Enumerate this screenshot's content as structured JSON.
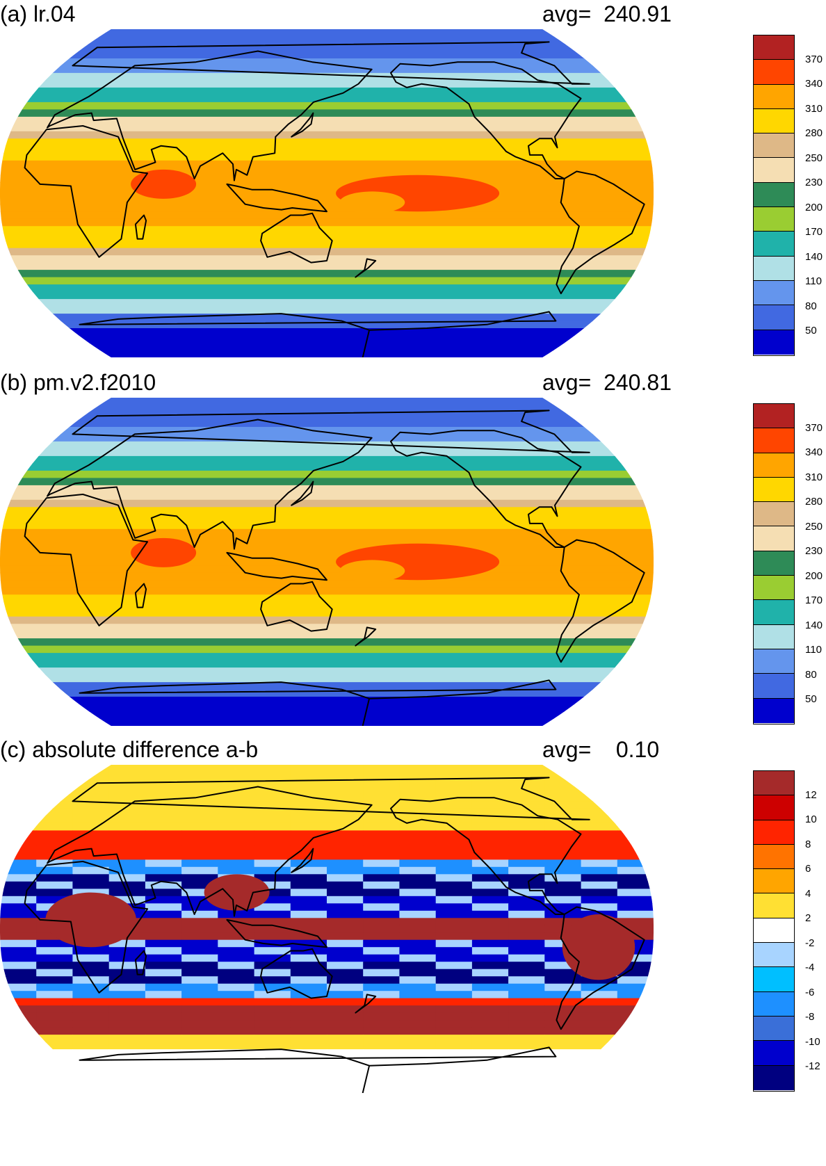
{
  "panels": [
    {
      "id": "a",
      "title": "(a) lr.04",
      "avg": "avg=  240.91",
      "kind": "abs",
      "colorbar": {
        "colors": [
          "#b22222",
          "#ff4500",
          "#ffa500",
          "#ffd700",
          "#deb887",
          "#f5deb3",
          "#2e8b57",
          "#9acd32",
          "#20b2aa",
          "#b0e0e6",
          "#6495ed",
          "#4169e1",
          "#0000cd"
        ],
        "labels": [
          "370",
          "340",
          "310",
          "280",
          "250",
          "230",
          "200",
          "170",
          "140",
          "110",
          "80",
          "50"
        ]
      }
    },
    {
      "id": "b",
      "title": "(b) pm.v2.f2010",
      "avg": "avg=  240.81",
      "kind": "abs",
      "colorbar": {
        "colors": [
          "#b22222",
          "#ff4500",
          "#ffa500",
          "#ffd700",
          "#deb887",
          "#f5deb3",
          "#2e8b57",
          "#9acd32",
          "#20b2aa",
          "#b0e0e6",
          "#6495ed",
          "#4169e1",
          "#0000cd"
        ],
        "labels": [
          "370",
          "340",
          "310",
          "280",
          "250",
          "230",
          "200",
          "170",
          "140",
          "110",
          "80",
          "50"
        ]
      }
    },
    {
      "id": "c",
      "title": "(c) absolute difference a-b",
      "avg": "avg=    0.10",
      "kind": "diff",
      "colorbar": {
        "colors": [
          "#a52a2a",
          "#cd0000",
          "#ff2400",
          "#ff7300",
          "#ffa500",
          "#ffe033",
          "#ffffff",
          "#a8d4ff",
          "#00bfff",
          "#1e90ff",
          "#3a6fd8",
          "#0000cd",
          "#000080"
        ],
        "labels": [
          "12",
          "10",
          "8",
          "6",
          "4",
          "2",
          "-2",
          "-4",
          "-6",
          "-8",
          "-10",
          "-12"
        ]
      }
    }
  ]
}
